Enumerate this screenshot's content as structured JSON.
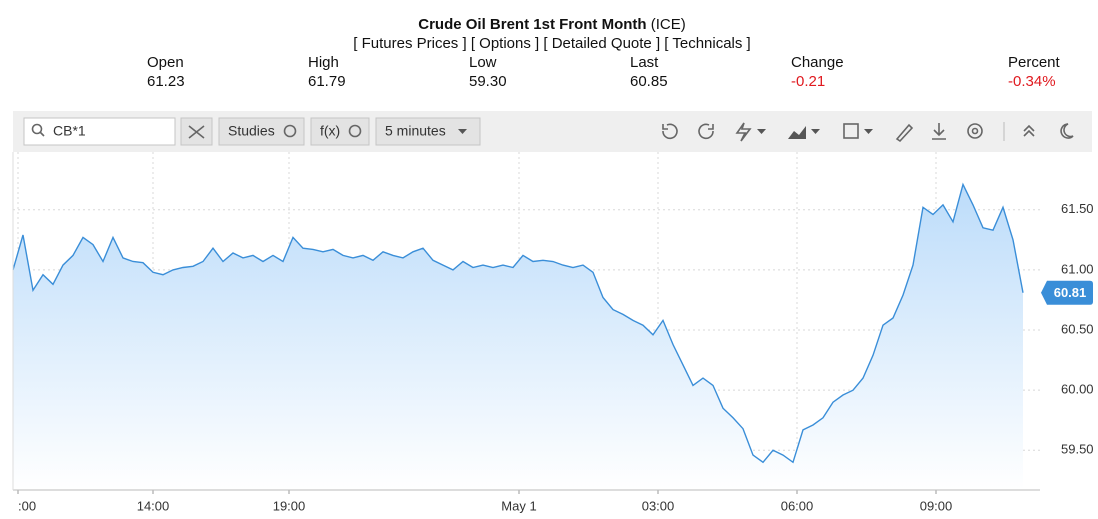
{
  "header": {
    "title": "Crude Oil Brent 1st Front Month",
    "exchange": "(ICE)",
    "links": [
      "[ Futures Prices ]",
      "[ Options ]",
      "[ Detailed Quote ]",
      "[ Technicals ]"
    ]
  },
  "quote": {
    "labels": [
      "Open",
      "High",
      "Low",
      "Last",
      "Change",
      "Percent"
    ],
    "values": [
      "61.23",
      "61.79",
      "59.30",
      "60.85",
      "-0.21",
      "-0.34%"
    ]
  },
  "toolbar": {
    "search": "CB*1",
    "studies": "Studies",
    "function": "f(x)",
    "interval": "5 minutes"
  },
  "chart_data": {
    "type": "line",
    "series": [
      {
        "name": "CB*1",
        "color": "#3a8ed8",
        "values": [
          61.0,
          61.29,
          60.83,
          60.96,
          60.88,
          61.04,
          61.12,
          61.27,
          61.21,
          61.07,
          61.27,
          61.1,
          61.07,
          61.06,
          60.98,
          60.96,
          61.0,
          61.02,
          61.03,
          61.07,
          61.18,
          61.07,
          61.14,
          61.1,
          61.12,
          61.07,
          61.12,
          61.07,
          61.27,
          61.18,
          61.17,
          61.15,
          61.17,
          61.12,
          61.1,
          61.12,
          61.08,
          61.15,
          61.12,
          61.1,
          61.15,
          61.18,
          61.08,
          61.04,
          61.0,
          61.07,
          61.02,
          61.04,
          61.02,
          61.04,
          61.02,
          61.12,
          61.07,
          61.08,
          61.07,
          61.04,
          61.02,
          61.04,
          60.98,
          60.77,
          60.67,
          60.63,
          60.58,
          60.54,
          60.46,
          60.58,
          60.38,
          60.21,
          60.04,
          60.1,
          60.04,
          59.85,
          59.77,
          59.68,
          59.46,
          59.4,
          59.5,
          59.46,
          59.4,
          59.67,
          59.71,
          59.77,
          59.9,
          59.96,
          60.0,
          60.1,
          60.29,
          60.54,
          60.6,
          60.79,
          61.04,
          61.52,
          61.46,
          61.54,
          61.4,
          61.71,
          61.54,
          61.35,
          61.33,
          61.52,
          61.25,
          60.81
        ]
      }
    ],
    "xlim": [
      0,
      102.7
    ],
    "xticks": [
      {
        "value": 0.5,
        "label": ":00"
      },
      {
        "value": 14,
        "label": "14:00"
      },
      {
        "value": 27.6,
        "label": "19:00"
      },
      {
        "value": 50.6,
        "label": "May 1"
      },
      {
        "value": 64.5,
        "label": "03:00"
      },
      {
        "value": 78.4,
        "label": "06:00"
      },
      {
        "value": 92.3,
        "label": "09:00"
      }
    ],
    "ylim": [
      59.17,
      61.98
    ],
    "yticks": [
      {
        "value": 59.5,
        "label": "59.50"
      },
      {
        "value": 60,
        "label": "60.00"
      },
      {
        "value": 60.5,
        "label": "60.50"
      },
      {
        "value": 61,
        "label": "61.00"
      },
      {
        "value": 61.5,
        "label": "61.50"
      }
    ],
    "grid": true
  }
}
